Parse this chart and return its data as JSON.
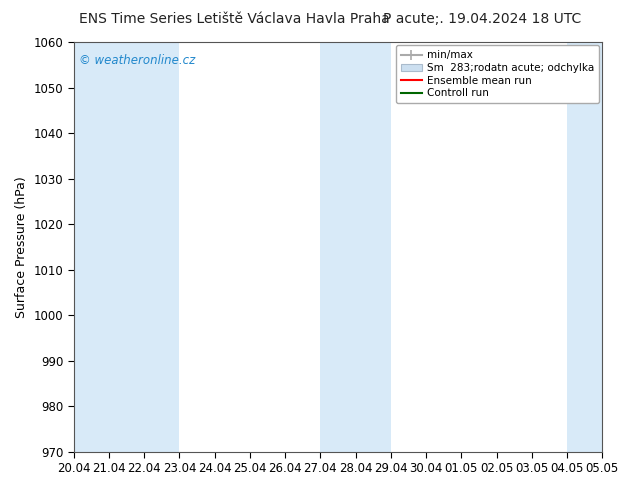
{
  "title": "ENS Time Series Letiště Václava Havla Praha",
  "title_right": "P acute;. 19.04.2024 18 UTC",
  "ylabel": "Surface Pressure (hPa)",
  "ylim": [
    970,
    1060
  ],
  "yticks": [
    970,
    980,
    990,
    1000,
    1010,
    1020,
    1030,
    1040,
    1050,
    1060
  ],
  "xlim": [
    0,
    15
  ],
  "xtick_labels": [
    "20.04",
    "21.04",
    "22.04",
    "23.04",
    "24.04",
    "25.04",
    "26.04",
    "27.04",
    "28.04",
    "29.04",
    "30.04",
    "01.05",
    "02.05",
    "03.05",
    "04.05",
    "05.05"
  ],
  "xtick_positions": [
    0,
    1,
    2,
    3,
    4,
    5,
    6,
    7,
    8,
    9,
    10,
    11,
    12,
    13,
    14,
    15
  ],
  "shaded_columns": [
    0,
    1,
    2,
    7,
    8,
    14
  ],
  "shade_color": "#d8eaf8",
  "background_color": "#ffffff",
  "plot_bg_color": "#ffffff",
  "watermark": "© weatheronline.cz",
  "watermark_color": "#2288cc",
  "legend_labels": [
    "min/max",
    "Sm  283;rodatn acute; odchylka",
    "Ensemble mean run",
    "Controll run"
  ],
  "ensemble_mean_color": "#ff0000",
  "control_run_color": "#006600",
  "title_fontsize": 10,
  "axis_fontsize": 9,
  "tick_fontsize": 8.5
}
